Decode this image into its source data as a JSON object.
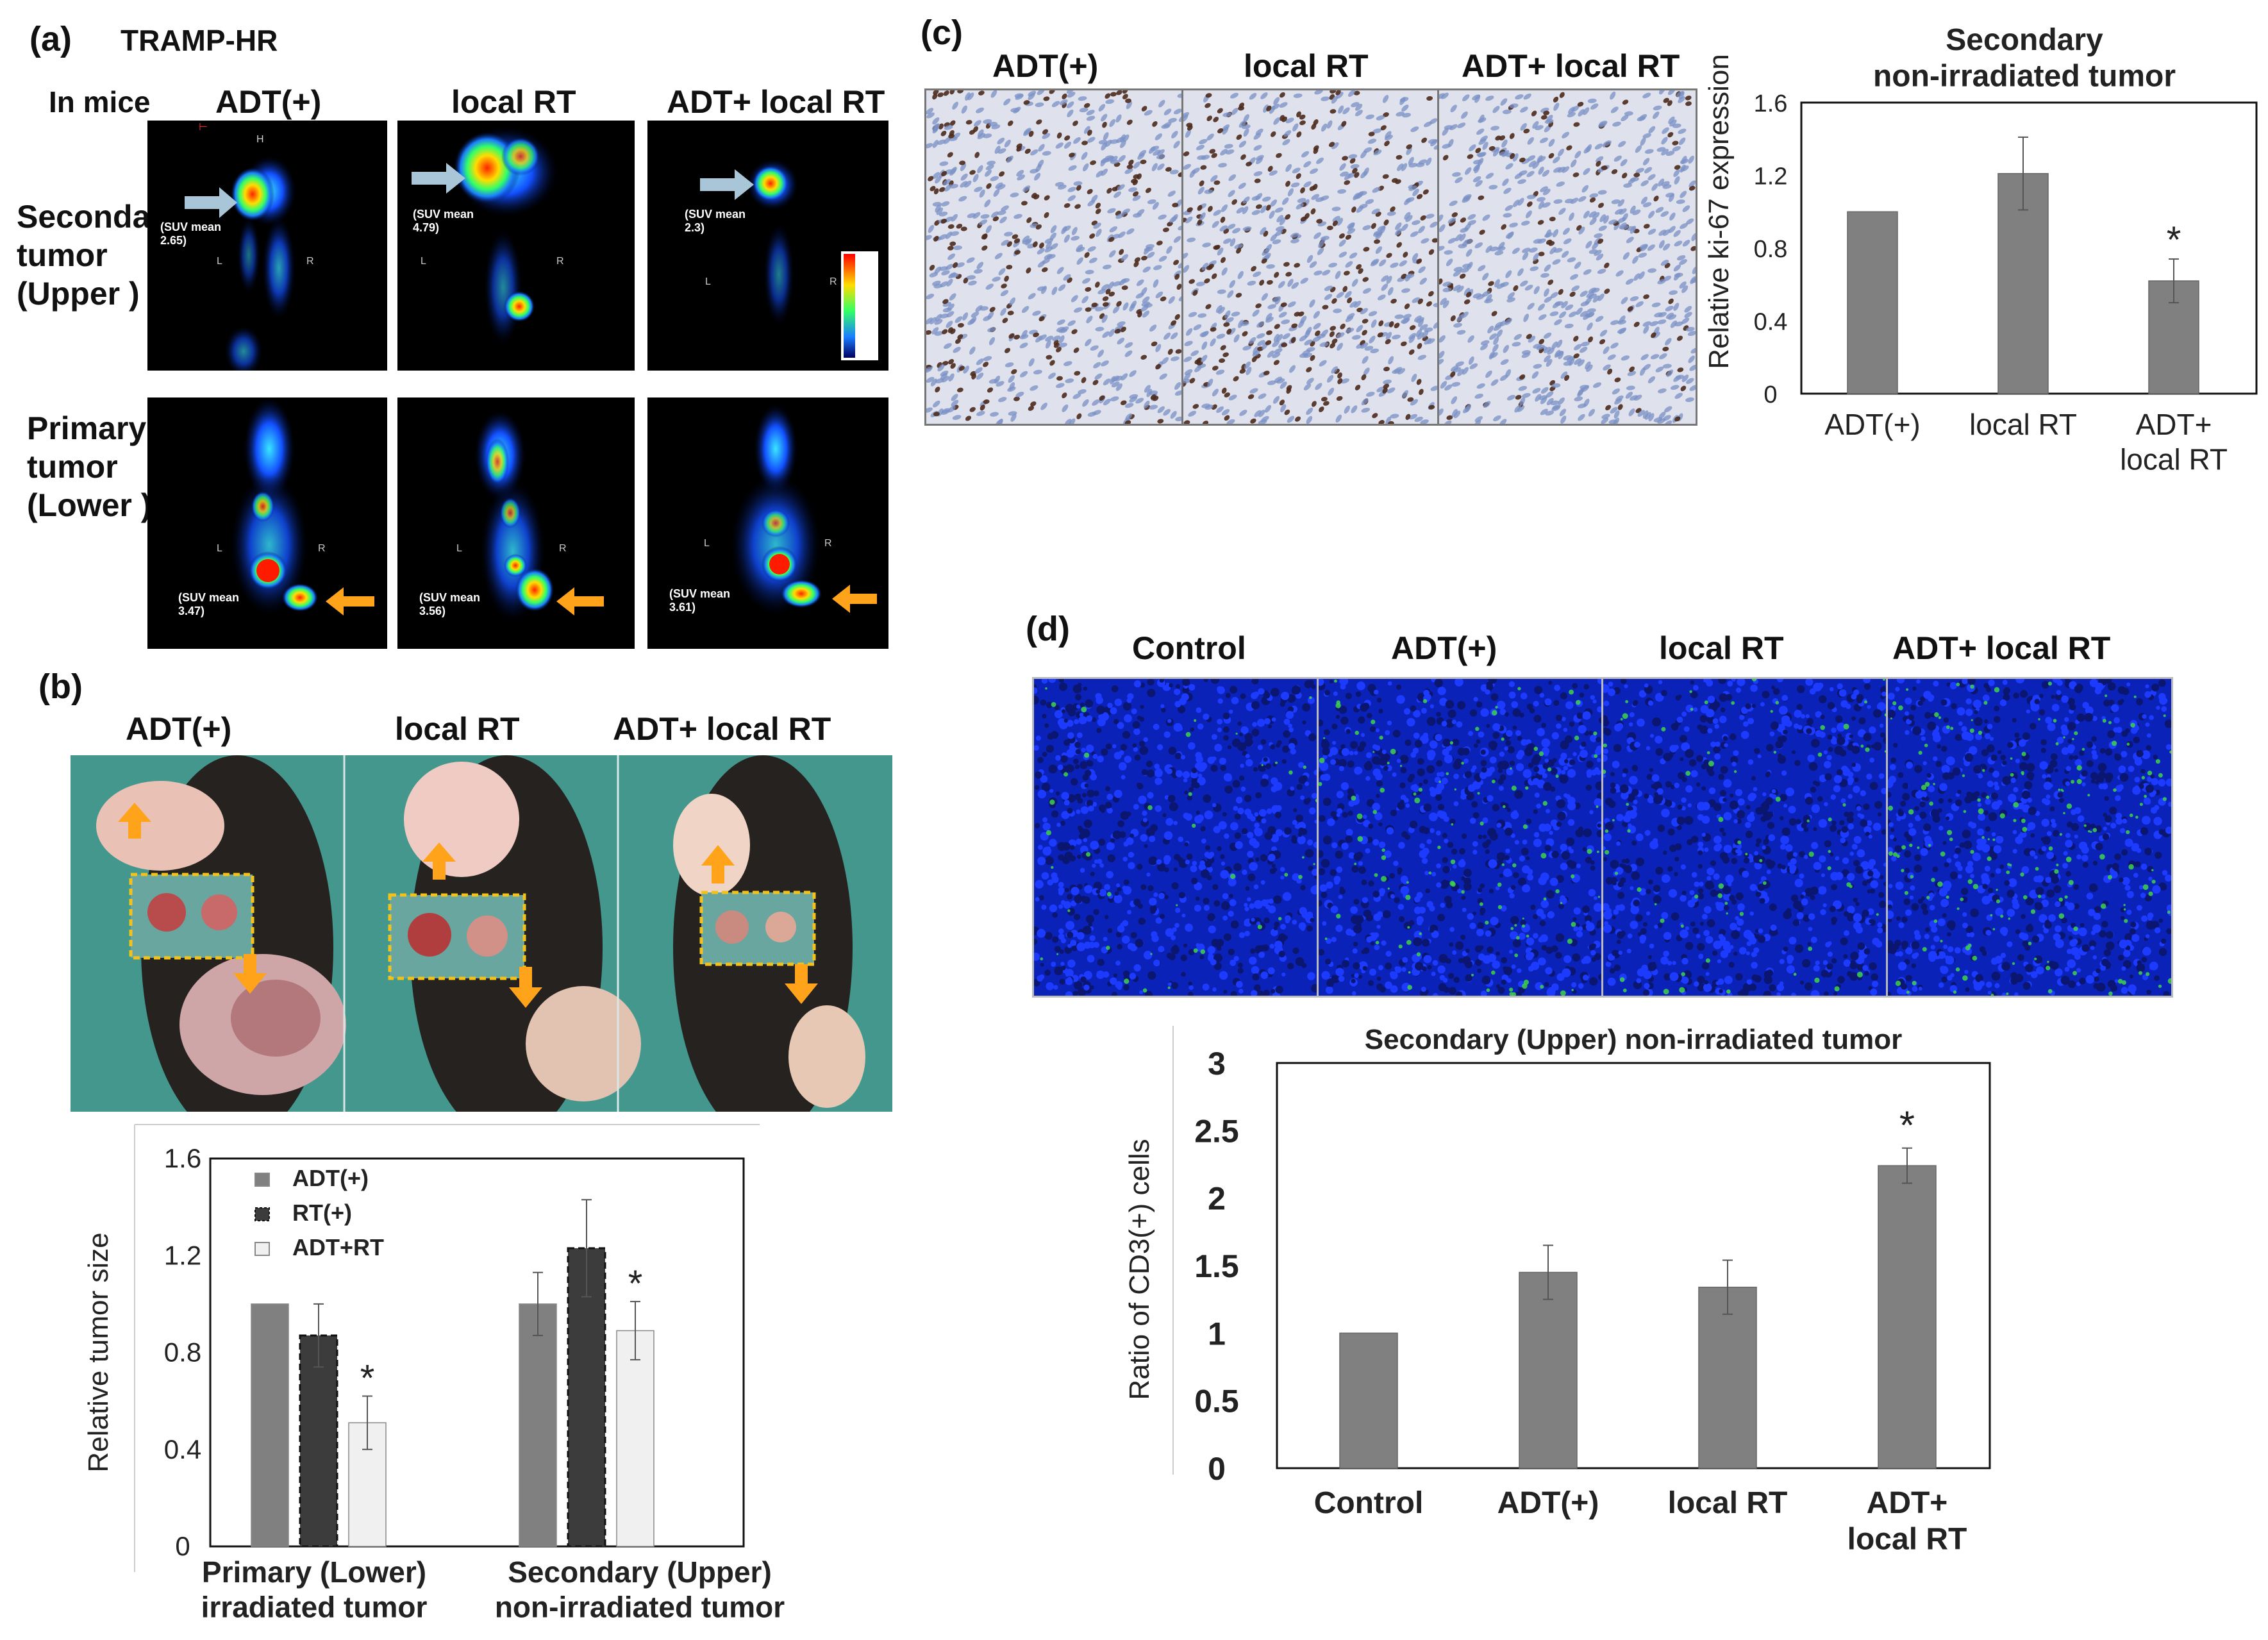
{
  "panel_a": {
    "tag": "(a)",
    "model": "TRAMP-HR",
    "row_header": "In mice",
    "columns": [
      "ADT(+)",
      "local RT",
      "ADT+ local RT"
    ],
    "rows": [
      "Seconda\ntumor\n(Upper )",
      "Primary\ntumor\n(Lower )"
    ],
    "upper_suv": [
      "(SUV mean\n2.65)",
      "(SUV mean\n4.79)",
      "(SUV mean\n2.3)"
    ],
    "lower_suv": [
      "(SUV mean\n3.47)",
      "(SUV mean\n3.56)",
      "(SUV mean\n3.61)"
    ]
  },
  "panel_b": {
    "tag": "(b)",
    "columns": [
      "ADT(+)",
      "local RT",
      "ADT+ local RT"
    ]
  },
  "panel_c": {
    "tag": "(c)",
    "columns": [
      "ADT(+)",
      "local RT",
      "ADT+ local RT"
    ]
  },
  "panel_d": {
    "tag": "(d)",
    "columns": [
      "Control",
      "ADT(+)",
      "local RT",
      "ADT+ local RT"
    ]
  },
  "colors": {
    "bar_gray": "#808080",
    "bar_dark": "#3c3c3c",
    "bar_light": "#f0f0f0",
    "pet_red": "#ff2a00",
    "arrow_orange": "#ffa31a",
    "arrow_blue": "#a9c6d8",
    "dapi_blue": "#0b22b9",
    "cd3_green": "#3ed24a"
  },
  "chart_data": [
    {
      "id": "b",
      "type": "bar",
      "ylabel": "Relative tumor size",
      "ylim": [
        0,
        1.6
      ],
      "yticks": [
        "0",
        "0.4",
        "0.8",
        "1.2",
        "1.6"
      ],
      "categories": [
        "Primary (Lower)\nirradiated tumor",
        "Secondary  (Upper)\nnon-irradiated tumor"
      ],
      "legend_position": "top-left",
      "series": [
        {
          "name": "ADT(+)",
          "values": [
            1.0,
            1.0
          ],
          "err": [
            0,
            0.13
          ]
        },
        {
          "name": "RT(+)",
          "values": [
            0.87,
            1.23
          ],
          "err": [
            0.13,
            0.2
          ]
        },
        {
          "name": "ADT+RT",
          "values": [
            0.51,
            0.89
          ],
          "err": [
            0.11,
            0.12
          ]
        }
      ],
      "significance": [
        "",
        "",
        "*",
        "",
        "",
        "*"
      ]
    },
    {
      "id": "c",
      "type": "bar",
      "title": "Secondary\nnon-irradiated tumor",
      "ylabel": "Relative ki-67 expression",
      "ylim": [
        0,
        1.6
      ],
      "yticks": [
        "0",
        "0.4",
        "0.8",
        "1.2",
        "1.6"
      ],
      "categories": [
        "ADT(+)",
        "local RT",
        "ADT+\nlocal RT"
      ],
      "values": [
        1.0,
        1.21,
        0.62
      ],
      "err": [
        0,
        0.2,
        0.12
      ],
      "significance": [
        "",
        "",
        "*"
      ]
    },
    {
      "id": "d",
      "type": "bar",
      "title": "Secondary  (Upper)  non-irradiated tumor",
      "ylabel": "Ratio of CD3(+) cells",
      "ylim": [
        0,
        3
      ],
      "yticks": [
        "0",
        "0.5",
        "1",
        "1.5",
        "2",
        "2.5",
        "3"
      ],
      "categories": [
        "Control",
        "ADT(+)",
        "local RT",
        "ADT+\nlocal RT"
      ],
      "values": [
        1.0,
        1.45,
        1.34,
        2.24
      ],
      "err": [
        0,
        0.2,
        0.2,
        0.13
      ],
      "significance": [
        "",
        "",
        "",
        "*"
      ]
    }
  ]
}
